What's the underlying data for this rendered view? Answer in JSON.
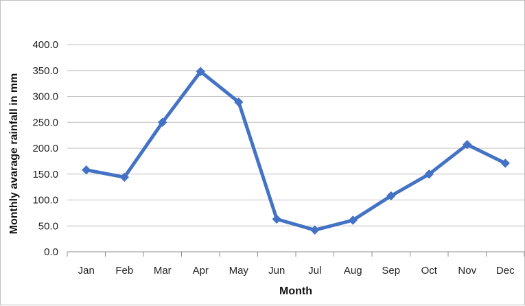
{
  "chart_data": {
    "type": "line",
    "title": "",
    "xlabel": "Month",
    "ylabel": "Monthly avarage rainfall in mm",
    "categories": [
      "Jan",
      "Feb",
      "Mar",
      "Apr",
      "May",
      "Jun",
      "Jul",
      "Aug",
      "Sep",
      "Oct",
      "Nov",
      "Dec"
    ],
    "values": [
      158,
      144,
      250,
      348,
      289,
      63,
      42,
      61,
      108,
      150,
      207,
      171
    ],
    "ylim": [
      0,
      400
    ],
    "yticks": [
      "0.0",
      "50.0",
      "100.0",
      "150.0",
      "200.0",
      "250.0",
      "300.0",
      "350.0",
      "400.0"
    ],
    "grid": true,
    "legend": "none",
    "marker": "diamond",
    "line_color": "#4472c4"
  }
}
